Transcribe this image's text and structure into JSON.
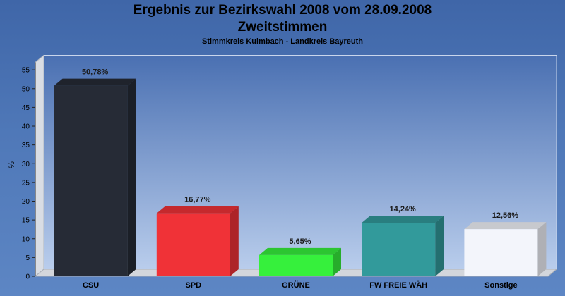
{
  "chart_data": {
    "type": "bar",
    "title": "Ergebnis zur Bezirkswahl 2008 vom 28.09.2008",
    "title2": "Zweitstimmen",
    "subtitle": "Stimmkreis Kulmbach - Landkreis Bayreuth",
    "xlabel": "",
    "ylabel": "%",
    "ylim": [
      0,
      57
    ],
    "yticks": [
      0,
      5,
      10,
      15,
      20,
      25,
      30,
      35,
      40,
      45,
      50,
      55
    ],
    "grid": false,
    "categories": [
      "CSU",
      "SPD",
      "GRÜNE",
      "FW FREIE WÄH",
      "Sonstige"
    ],
    "values": [
      50.78,
      16.77,
      5.65,
      14.24,
      12.56
    ],
    "data_labels": [
      "50,78%",
      "16,77%",
      "5,65%",
      "14,24%",
      "12,56%"
    ],
    "colors": [
      "#262b36",
      "#f03237",
      "#36f03c",
      "#329a9b",
      "#f3f5fb"
    ]
  }
}
